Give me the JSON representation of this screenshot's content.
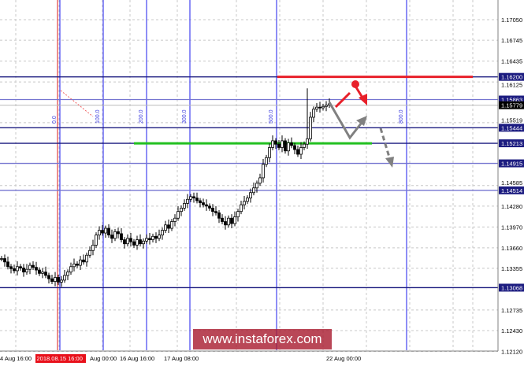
{
  "chart_data": {
    "type": "candlestick",
    "title": "",
    "y_axis": {
      "ticks": [
        "1.17050",
        "1.16745",
        "1.16435",
        "1.16125",
        "1.15519",
        "1.14585",
        "1.14280",
        "1.13970",
        "1.13660",
        "1.13355",
        "1.12735",
        "1.12430",
        "1.12120"
      ],
      "range": [
        1.1212,
        1.1705
      ]
    },
    "x_axis": {
      "ticks": [
        "4 Aug 16:00",
        "Aug 00:00",
        "16 Aug 16:00",
        "17 Aug 08:00",
        "22 Aug 00:00"
      ],
      "highlighted_tick": "2018.08.15 16:00"
    },
    "closes": [
      1.135,
      1.1345,
      1.1338,
      1.1335,
      1.1332,
      1.1338,
      1.1336,
      1.133,
      1.1334,
      1.134,
      1.1337,
      1.1333,
      1.1328,
      1.133,
      1.1325,
      1.132,
      1.1316,
      1.1322,
      1.1315,
      1.1318,
      1.1325,
      1.133,
      1.1338,
      1.1342,
      1.134,
      1.1348,
      1.1345,
      1.1355,
      1.1362,
      1.137,
      1.1385,
      1.1392,
      1.1388,
      1.1395,
      1.1385,
      1.138,
      1.139,
      1.1387,
      1.1378,
      1.1372,
      1.138,
      1.1375,
      1.137,
      1.1378,
      1.1372,
      1.1376,
      1.138,
      1.1378,
      1.1383,
      1.138,
      1.1385,
      1.1392,
      1.14,
      1.1395,
      1.1405,
      1.141,
      1.142,
      1.1425,
      1.1432,
      1.1438,
      1.1442,
      1.144,
      1.1436,
      1.1433,
      1.143,
      1.1428,
      1.1425,
      1.142,
      1.1418,
      1.141,
      1.1405,
      1.14,
      1.141,
      1.1402,
      1.1412,
      1.142,
      1.143,
      1.1435,
      1.144,
      1.1448,
      1.1455,
      1.1462,
      1.147,
      1.149,
      1.15,
      1.1515,
      1.1525,
      1.152,
      1.1515,
      1.1525,
      1.151,
      1.1522,
      1.1518,
      1.1512,
      1.1505,
      1.1515,
      1.152,
      1.1528,
      1.156,
      1.1572,
      1.1575,
      1.1574,
      1.1576,
      1.1578,
      1.158
    ],
    "levels": [
      {
        "price": 1.162,
        "label": "1.16200",
        "color": "#1c1c80"
      },
      {
        "price": 1.15863,
        "label": "1.15863",
        "color": "#7474d0"
      },
      {
        "price": 1.15444,
        "label": "1.15444",
        "color": "#1c1c80"
      },
      {
        "price": 1.15213,
        "label": "1.15213",
        "color": "#1c1c80"
      },
      {
        "price": 1.14915,
        "label": "1.14915",
        "color": "#7474d0"
      },
      {
        "price": 1.14514,
        "label": "1.14514",
        "color": "#7474d0"
      },
      {
        "price": 1.13068,
        "label": "1.13068",
        "color": "#1c1c80"
      }
    ],
    "current_price": {
      "price": 1.15779,
      "label": "1.15779"
    },
    "resistance": {
      "price": 1.162,
      "color": "#e8202a"
    },
    "support": {
      "price": 1.15213,
      "color": "#22c020"
    },
    "fib_time_zones": [
      "0.0",
      "100.0",
      "200.0",
      "300.0",
      "500.0",
      "800.0"
    ]
  },
  "watermark": "www.instaforex.com"
}
